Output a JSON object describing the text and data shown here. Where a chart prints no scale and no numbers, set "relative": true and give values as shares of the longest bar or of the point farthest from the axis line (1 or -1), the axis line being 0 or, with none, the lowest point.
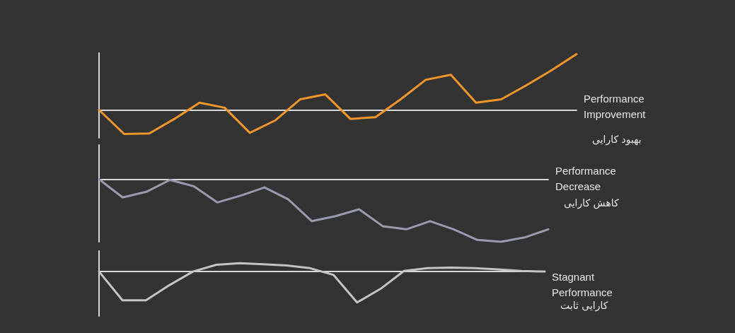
{
  "chart_data": [
    {
      "type": "line",
      "relative": true,
      "marker": "none",
      "categories": [
        null,
        null,
        null,
        null,
        null,
        null,
        null,
        null,
        null,
        null,
        null,
        null,
        null,
        null,
        null,
        null,
        null,
        null,
        null,
        null
      ],
      "series": [
        {
          "name": "Performance Improvement",
          "color": "#f0962a",
          "values": [
            0,
            -0.43,
            -0.42,
            -0.16,
            0.13,
            0.04,
            -0.41,
            -0.19,
            0.19,
            0.28,
            -0.16,
            -0.13,
            0.19,
            0.54,
            0.63,
            0.13,
            0.19,
            0.44,
            0.71,
            1
          ]
        }
      ],
      "annotations": [
        "بهبود کارایی"
      ]
    },
    {
      "type": "line",
      "relative": true,
      "marker": "none",
      "categories": [
        null,
        null,
        null,
        null,
        null,
        null,
        null,
        null,
        null,
        null,
        null,
        null,
        null,
        null,
        null,
        null,
        null,
        null,
        null,
        null
      ],
      "series": [
        {
          "name": "Performance Decrease",
          "color": "#9a9aae",
          "values": [
            0,
            -0.29,
            -0.2,
            -0.01,
            -0.11,
            -0.37,
            -0.26,
            -0.13,
            -0.32,
            -0.67,
            -0.59,
            -0.48,
            -0.75,
            -0.8,
            -0.67,
            -0.8,
            -0.97,
            -1,
            -0.93,
            -0.8
          ]
        }
      ],
      "annotations": [
        "کاهش کارایی"
      ]
    },
    {
      "type": "line",
      "relative": true,
      "marker": "none",
      "categories": [
        null,
        null,
        null,
        null,
        null,
        null,
        null,
        null,
        null,
        null,
        null,
        null,
        null,
        null,
        null,
        null,
        null,
        null,
        null,
        null
      ],
      "series": [
        {
          "name": "Stagnant Performance",
          "color": "#c4c4c4",
          "values": [
            0,
            -0.93,
            -0.93,
            -0.44,
            0,
            0.22,
            0.27,
            0.24,
            0.2,
            0.11,
            -0.11,
            -1,
            -0.56,
            0.02,
            0.11,
            0.13,
            0.11,
            0.07,
            0.02,
            0
          ]
        }
      ],
      "annotations": [
        "کارایی ثابت"
      ]
    }
  ]
}
